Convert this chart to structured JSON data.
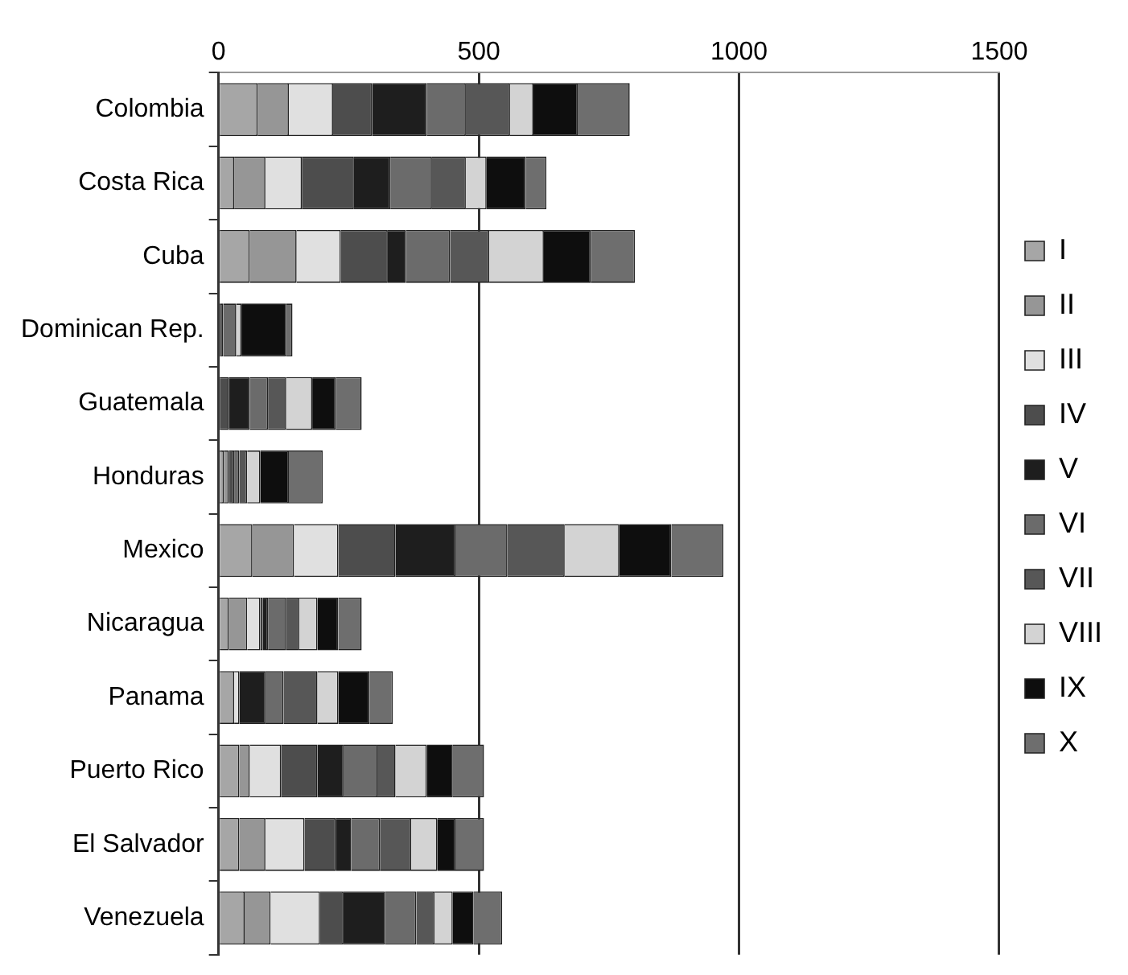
{
  "chart_data": {
    "type": "bar",
    "orientation": "horizontal",
    "stacked": true,
    "categories": [
      "Colombia",
      "Costa Rica",
      "Cuba",
      "Dominican Rep.",
      "Guatemala",
      "Honduras",
      "Mexico",
      "Nicaragua",
      "Panama",
      "Puerto Rico",
      "El Salvador",
      "Venezuela"
    ],
    "series": [
      {
        "name": "I",
        "color": "#a6a6a6",
        "values": [
          75,
          30,
          60,
          null,
          0,
          10,
          65,
          20,
          30,
          40,
          40,
          50
        ]
      },
      {
        "name": "II",
        "color": "#969696",
        "values": [
          60,
          60,
          90,
          0,
          0,
          10,
          80,
          35,
          0,
          20,
          50,
          50
        ]
      },
      {
        "name": "III",
        "color": "#e0e0e0",
        "values": [
          85,
          70,
          85,
          0,
          0,
          0,
          85,
          25,
          10,
          60,
          75,
          95
        ]
      },
      {
        "name": "IV",
        "color": "#4d4d4d",
        "values": [
          75,
          100,
          90,
          9,
          20,
          10,
          110,
          5,
          0,
          70,
          60,
          45
        ]
      },
      {
        "name": "V",
        "color": "#1e1e1e",
        "values": [
          105,
          70,
          35,
          0,
          40,
          0,
          115,
          10,
          50,
          50,
          30,
          80
        ]
      },
      {
        "name": "VI",
        "color": "#6b6b6b",
        "values": [
          75,
          80,
          85,
          25,
          35,
          10,
          100,
          35,
          35,
          65,
          55,
          60
        ]
      },
      {
        "name": "VII",
        "color": "#575757",
        "values": [
          85,
          65,
          75,
          0,
          35,
          15,
          110,
          25,
          65,
          35,
          60,
          35
        ]
      },
      {
        "name": "VIII",
        "color": "#d3d3d3",
        "values": [
          45,
          40,
          105,
          10,
          50,
          25,
          105,
          35,
          40,
          60,
          50,
          35
        ]
      },
      {
        "name": "IX",
        "color": "#0e0e0e",
        "values": [
          85,
          75,
          90,
          86,
          45,
          55,
          100,
          40,
          60,
          50,
          35,
          40
        ]
      },
      {
        "name": "X",
        "color": "#6e6e6e",
        "values": [
          100,
          40,
          85,
          12,
          50,
          65,
          100,
          45,
          45,
          60,
          55,
          55
        ]
      }
    ],
    "xlim": [
      0,
      1500
    ],
    "xticks": [
      0,
      500,
      1000,
      1500
    ],
    "grid": "x",
    "legend": "right"
  }
}
